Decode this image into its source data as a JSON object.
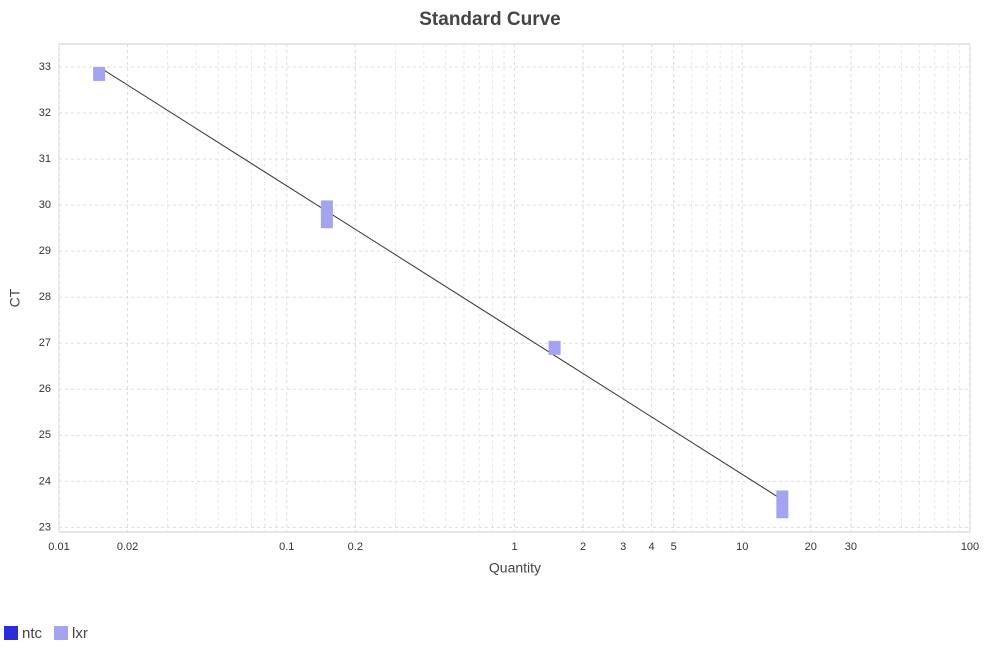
{
  "chart_data": {
    "type": "scatter",
    "title": "Standard Curve",
    "x_label": "Quantity",
    "y_label": "CT",
    "log_x": true,
    "grid": true,
    "legend": "bottom-left",
    "xlim": [
      0.01,
      100
    ],
    "ylim": [
      22.9,
      33.5
    ],
    "xticks": [
      0.01,
      0.02,
      0.1,
      0.2,
      1,
      2,
      3,
      4,
      5,
      10,
      20,
      30,
      100
    ],
    "yticks": [
      23,
      24,
      25,
      26,
      27,
      28,
      29,
      30,
      31,
      32,
      33
    ],
    "series": [
      {
        "name": "ntc",
        "color": "#2b2bd9",
        "x": [],
        "values": []
      },
      {
        "name": "lxr",
        "color": "#a3a3f2",
        "x": [
          0.015,
          0.15,
          0.15,
          1.5,
          15,
          15
        ],
        "values": [
          32.85,
          29.95,
          29.65,
          26.9,
          23.65,
          23.35
        ]
      }
    ],
    "fit_line": {
      "color": "#333333",
      "x": [
        0.015,
        15
      ],
      "y": [
        33.0,
        23.6
      ]
    }
  }
}
